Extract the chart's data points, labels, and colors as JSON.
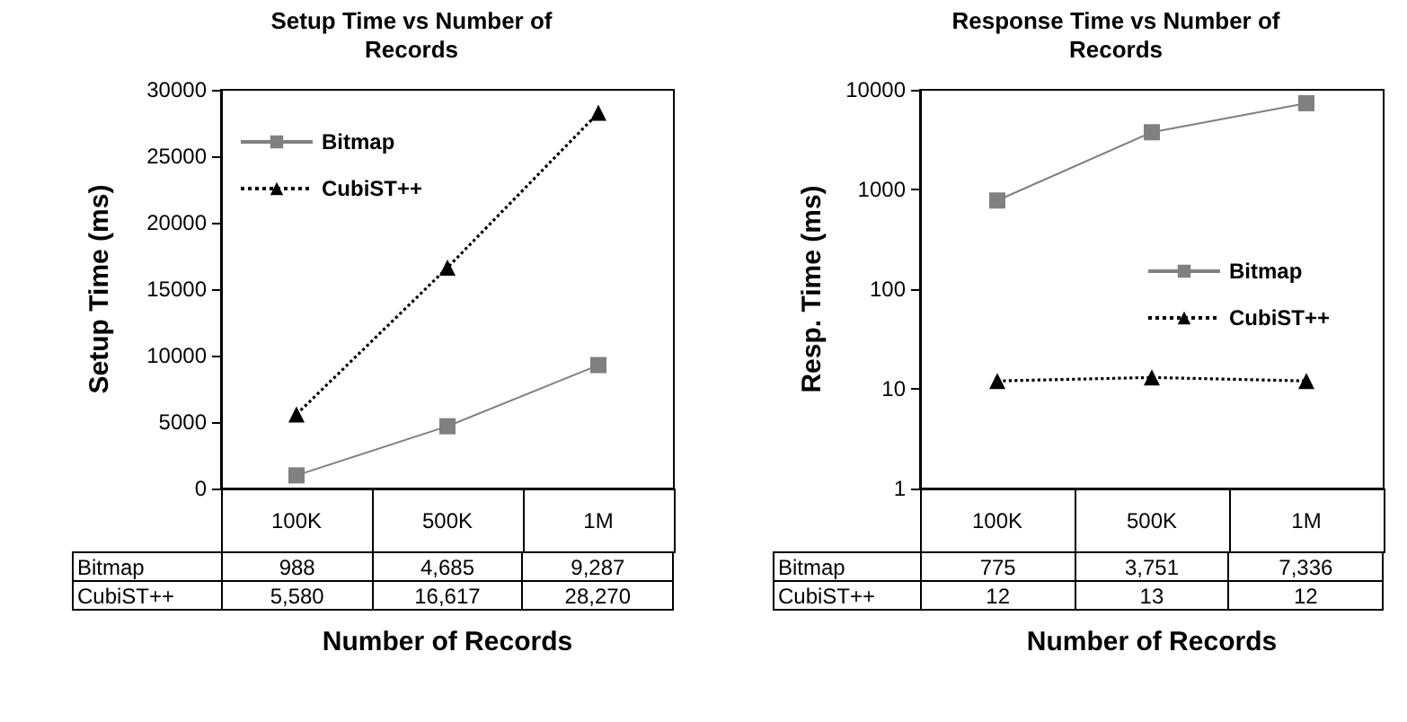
{
  "chart_data": [
    {
      "type": "line",
      "title": "Setup Time vs Number of Records",
      "xlabel": "Number of Records",
      "ylabel": "Setup Time (ms)",
      "categories": [
        "100K",
        "500K",
        "1M"
      ],
      "ylim": [
        0,
        30000
      ],
      "yticks": [
        0,
        5000,
        10000,
        15000,
        20000,
        25000,
        30000
      ],
      "grid": false,
      "legend": "top left",
      "series": [
        {
          "name": "Bitmap",
          "color": "#808080",
          "marker": "square",
          "line_style": "solid",
          "values": [
            988,
            4685,
            9287
          ],
          "value_labels": [
            "988",
            "4,685",
            "9,287"
          ]
        },
        {
          "name": "CubiST++",
          "color": "#000000",
          "marker": "triangle",
          "line_style": "dotted",
          "values": [
            5580,
            16617,
            28270
          ],
          "value_labels": [
            "5,580",
            "16,617",
            "28,270"
          ]
        }
      ]
    },
    {
      "type": "line",
      "title": "Response Time vs Number of Records",
      "xlabel": "Number of Records",
      "ylabel": "Resp. Time (ms)",
      "categories": [
        "100K",
        "500K",
        "1M"
      ],
      "log": true,
      "ylim": [
        1,
        10000
      ],
      "yticks": [
        1,
        10,
        100,
        1000,
        10000
      ],
      "grid": false,
      "legend": "right",
      "series": [
        {
          "name": "Bitmap",
          "color": "#808080",
          "marker": "square",
          "line_style": "solid",
          "values": [
            775,
            3751,
            7336
          ],
          "value_labels": [
            "775",
            "3,751",
            "7,336"
          ]
        },
        {
          "name": "CubiST++",
          "color": "#000000",
          "marker": "triangle",
          "line_style": "dotted",
          "values": [
            12,
            13,
            12
          ],
          "value_labels": [
            "12",
            "13",
            "12"
          ]
        }
      ]
    }
  ]
}
